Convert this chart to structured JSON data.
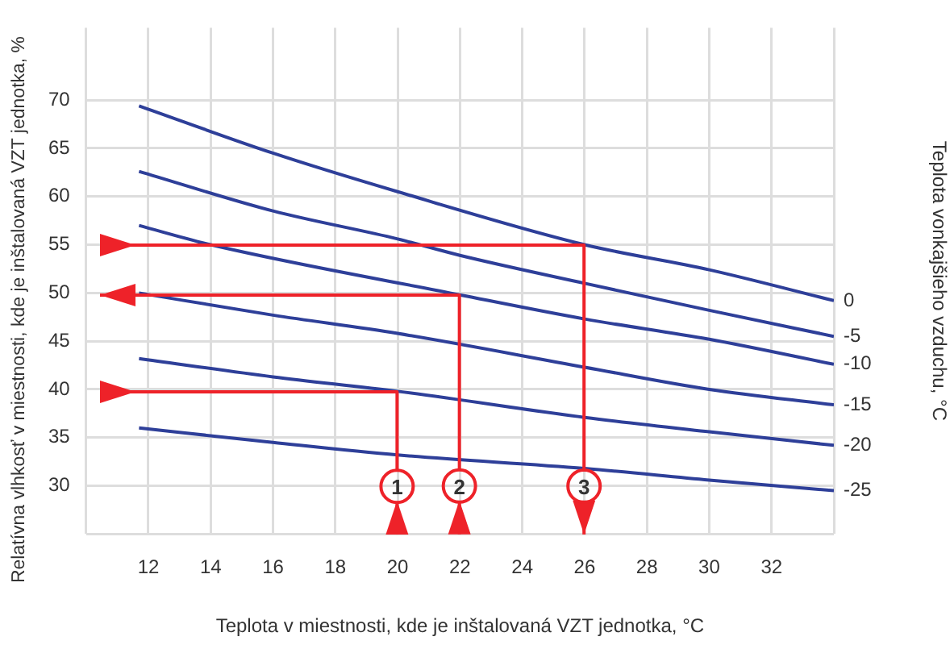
{
  "chart_data": {
    "type": "line",
    "xlabel": "Teplota v miestnosti, kde je inštalovaná VZT jednotka, °C",
    "ylabel": "Relatívna vlhkosť v miestnosti, kde je inštalovaná VZT jednotka, %",
    "y2label": "Teplota vonkajšieho vzduchu, °C",
    "annotations": [
      {
        "text": "1",
        "x": 20,
        "y": 30
      },
      {
        "text": "2",
        "x": 22,
        "y": 30
      },
      {
        "text": "3",
        "x": 26,
        "y": 30
      }
    ],
    "xlim": [
      10,
      34
    ],
    "xticks": [
      {
        "value": 10,
        "label": null
      },
      12,
      14,
      16,
      18,
      20,
      22,
      24,
      26,
      28,
      30,
      32,
      {
        "value": 34,
        "label": null
      }
    ],
    "ylim": [
      25,
      77.5
    ],
    "yticks": [
      {
        "value": 25,
        "label": null
      },
      30,
      35,
      40,
      45,
      50,
      55,
      60,
      65,
      70
    ],
    "grid": true,
    "legend": false,
    "marker": "none",
    "line_style": "solid",
    "series": [
      {
        "name": "0",
        "color": "#2e3f99",
        "x": [
          11.7,
          16,
          20,
          26,
          30,
          34
        ],
        "values": [
          69.4,
          64.5,
          60.5,
          55,
          52.4,
          49.2
        ]
      },
      {
        "name": "-5",
        "color": "#2e3f99",
        "x": [
          11.7,
          16,
          20,
          22,
          26,
          30,
          34
        ],
        "values": [
          62.6,
          58.5,
          55.6,
          53.9,
          51,
          48.2,
          45.5
        ]
      },
      {
        "name": "-10",
        "color": "#2e3f99",
        "x": [
          11.7,
          14,
          22,
          26,
          30,
          34
        ],
        "values": [
          57,
          55,
          49.8,
          47.3,
          45.2,
          42.6
        ]
      },
      {
        "name": "-15",
        "color": "#2e3f99",
        "x": [
          11.7,
          16,
          20,
          26,
          30,
          34
        ],
        "values": [
          50,
          47.7,
          45.8,
          42.3,
          40,
          38.4
        ]
      },
      {
        "name": "-20",
        "color": "#2e3f99",
        "x": [
          11.7,
          16,
          20,
          26,
          30,
          34
        ],
        "values": [
          43.2,
          41.3,
          39.8,
          37.1,
          35.6,
          34.2
        ]
      },
      {
        "name": "-25",
        "color": "#2e3f99",
        "x": [
          11.7,
          16,
          20,
          26,
          30,
          34
        ],
        "values": [
          36,
          34.5,
          33.2,
          31.8,
          30.6,
          29.5
        ]
      }
    ]
  }
}
